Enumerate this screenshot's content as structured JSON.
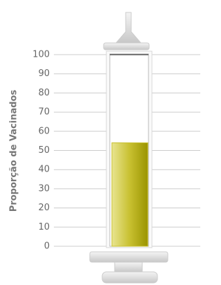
{
  "chart_data": {
    "type": "bar",
    "y_label": "Proporção de Vacinados",
    "values": [
      54
    ],
    "color": "#c8c030",
    "ylim": [
      0,
      100
    ],
    "yticks": [
      0,
      10,
      20,
      30,
      40,
      50,
      60,
      70,
      80,
      90,
      100
    ],
    "grid": true
  }
}
